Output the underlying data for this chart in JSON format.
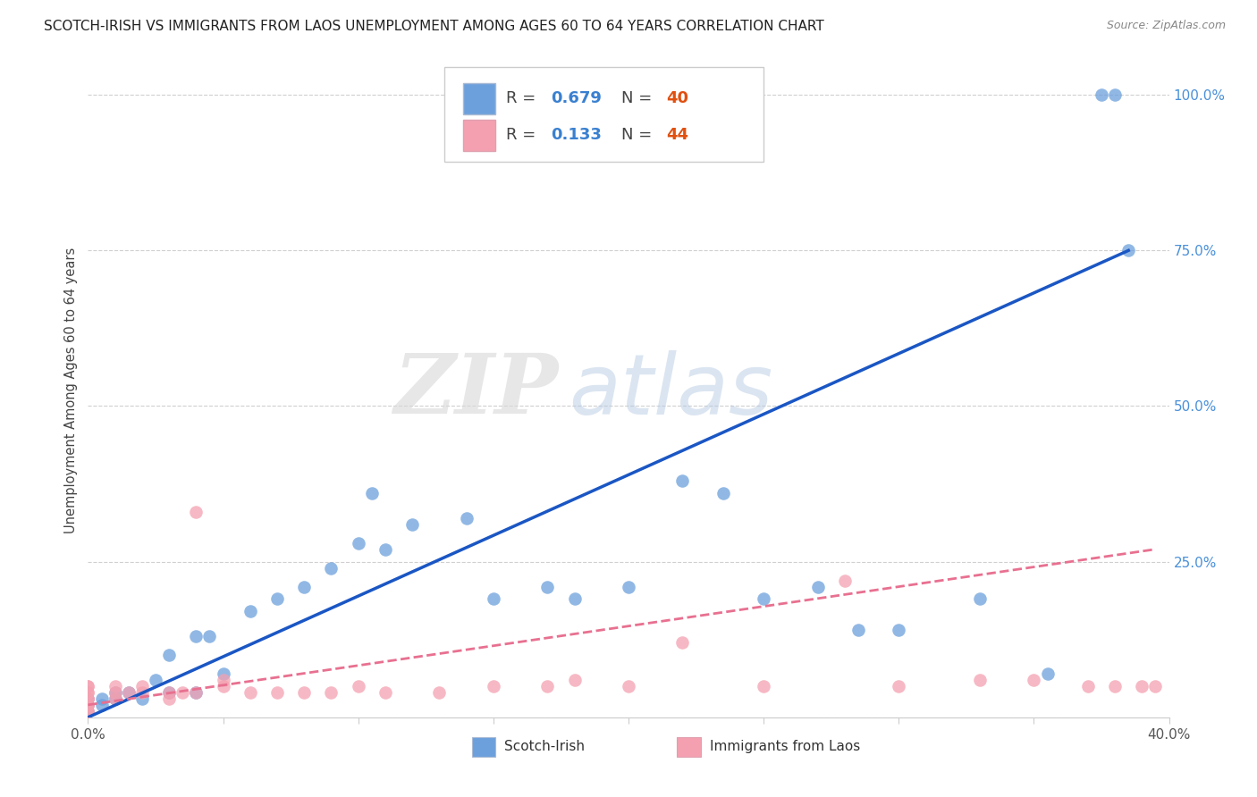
{
  "title": "SCOTCH-IRISH VS IMMIGRANTS FROM LAOS UNEMPLOYMENT AMONG AGES 60 TO 64 YEARS CORRELATION CHART",
  "source": "Source: ZipAtlas.com",
  "ylabel": "Unemployment Among Ages 60 to 64 years",
  "xlim": [
    0.0,
    0.4
  ],
  "ylim": [
    0.0,
    1.05
  ],
  "xticks": [
    0.0,
    0.05,
    0.1,
    0.15,
    0.2,
    0.25,
    0.3,
    0.35,
    0.4
  ],
  "xticklabels": [
    "0.0%",
    "",
    "",
    "",
    "",
    "",
    "",
    "",
    "40.0%"
  ],
  "ytick_positions": [
    0.0,
    0.25,
    0.5,
    0.75,
    1.0
  ],
  "yticklabels_right": [
    "",
    "25.0%",
    "50.0%",
    "75.0%",
    "100.0%"
  ],
  "scotch_irish_color": "#6ca0dc",
  "immigrants_laos_color": "#f4a0b0",
  "line_blue_color": "#1a56c4",
  "line_pink_color": "#e87090",
  "R_scotch": 0.679,
  "N_scotch": 40,
  "R_laos": 0.133,
  "N_laos": 44,
  "blue_line_x0": 0.0,
  "blue_line_y0": 0.0,
  "blue_line_x1": 0.385,
  "blue_line_y1": 0.75,
  "pink_line_x0": 0.0,
  "pink_line_y0": 0.02,
  "pink_line_x1": 0.395,
  "pink_line_y1": 0.27,
  "scotch_irish_x": [
    0.0,
    0.0,
    0.0,
    0.005,
    0.005,
    0.01,
    0.01,
    0.015,
    0.02,
    0.025,
    0.03,
    0.03,
    0.04,
    0.04,
    0.045,
    0.05,
    0.06,
    0.07,
    0.08,
    0.09,
    0.1,
    0.105,
    0.11,
    0.12,
    0.14,
    0.15,
    0.17,
    0.18,
    0.2,
    0.22,
    0.235,
    0.25,
    0.27,
    0.285,
    0.3,
    0.33,
    0.355,
    0.375,
    0.38,
    0.385
  ],
  "scotch_irish_y": [
    0.01,
    0.02,
    0.03,
    0.02,
    0.03,
    0.03,
    0.04,
    0.04,
    0.03,
    0.06,
    0.04,
    0.1,
    0.04,
    0.13,
    0.13,
    0.07,
    0.17,
    0.19,
    0.21,
    0.24,
    0.28,
    0.36,
    0.27,
    0.31,
    0.32,
    0.19,
    0.21,
    0.19,
    0.21,
    0.38,
    0.36,
    0.19,
    0.21,
    0.14,
    0.14,
    0.19,
    0.07,
    1.0,
    1.0,
    0.75
  ],
  "laos_x": [
    0.0,
    0.0,
    0.0,
    0.0,
    0.0,
    0.0,
    0.0,
    0.0,
    0.0,
    0.0,
    0.01,
    0.01,
    0.01,
    0.015,
    0.02,
    0.02,
    0.03,
    0.03,
    0.035,
    0.04,
    0.05,
    0.05,
    0.06,
    0.07,
    0.08,
    0.09,
    0.1,
    0.11,
    0.13,
    0.15,
    0.17,
    0.18,
    0.2,
    0.22,
    0.25,
    0.28,
    0.3,
    0.33,
    0.35,
    0.37,
    0.38,
    0.39,
    0.395,
    0.04
  ],
  "laos_y": [
    0.01,
    0.01,
    0.02,
    0.02,
    0.03,
    0.03,
    0.04,
    0.04,
    0.05,
    0.05,
    0.03,
    0.04,
    0.05,
    0.04,
    0.04,
    0.05,
    0.03,
    0.04,
    0.04,
    0.04,
    0.05,
    0.06,
    0.04,
    0.04,
    0.04,
    0.04,
    0.05,
    0.04,
    0.04,
    0.05,
    0.05,
    0.06,
    0.05,
    0.12,
    0.05,
    0.22,
    0.05,
    0.06,
    0.06,
    0.05,
    0.05,
    0.05,
    0.05,
    0.33
  ],
  "watermark_zip": "ZIP",
  "watermark_atlas": "atlas",
  "background_color": "#ffffff",
  "grid_color": "#d0d0d0"
}
